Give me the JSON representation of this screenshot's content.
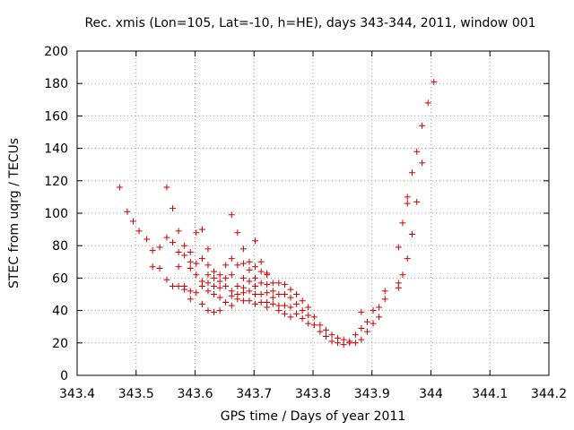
{
  "chart_data": {
    "type": "scatter",
    "title": "Rec. xmis (Lon=105, Lat=-10, h=HE), days 343-344, 2011, window 001",
    "xlabel": "GPS time / Days of year 2011",
    "ylabel": "STEC from uqrg / TECUs",
    "xlim": [
      343.4,
      344.2
    ],
    "ylim": [
      0,
      200
    ],
    "xticks": [
      343.4,
      343.5,
      343.6,
      343.7,
      343.8,
      343.9,
      344,
      344.1,
      344.2
    ],
    "xtick_labels": [
      "343.4",
      "343.5",
      "343.6",
      "343.7",
      "343.8",
      "343.9",
      "344",
      "344.1",
      "344.2"
    ],
    "yticks": [
      0,
      20,
      40,
      60,
      80,
      100,
      120,
      140,
      160,
      180,
      200
    ],
    "ytick_labels": [
      "0",
      "20",
      "40",
      "60",
      "80",
      "100",
      "120",
      "140",
      "160",
      "180",
      "200"
    ],
    "grid": true,
    "marker": "plus",
    "color": "#cc0000",
    "points": [
      [
        343.472,
        116
      ],
      [
        343.485,
        101
      ],
      [
        343.495,
        95
      ],
      [
        343.505,
        89
      ],
      [
        343.518,
        84
      ],
      [
        343.528,
        77
      ],
      [
        343.528,
        67
      ],
      [
        343.54,
        79
      ],
      [
        343.54,
        66
      ],
      [
        343.552,
        85
      ],
      [
        343.552,
        116
      ],
      [
        343.552,
        59
      ],
      [
        343.562,
        82
      ],
      [
        343.562,
        103
      ],
      [
        343.562,
        55
      ],
      [
        343.572,
        89
      ],
      [
        343.572,
        76
      ],
      [
        343.572,
        67
      ],
      [
        343.572,
        55
      ],
      [
        343.582,
        80
      ],
      [
        343.582,
        74
      ],
      [
        343.582,
        55
      ],
      [
        343.582,
        53
      ],
      [
        343.592,
        76
      ],
      [
        343.592,
        70
      ],
      [
        343.592,
        66
      ],
      [
        343.592,
        52
      ],
      [
        343.592,
        47
      ],
      [
        343.602,
        88
      ],
      [
        343.602,
        69
      ],
      [
        343.602,
        62
      ],
      [
        343.602,
        51
      ],
      [
        343.612,
        90
      ],
      [
        343.612,
        72
      ],
      [
        343.612,
        58
      ],
      [
        343.612,
        55
      ],
      [
        343.612,
        44
      ],
      [
        343.622,
        78
      ],
      [
        343.622,
        68
      ],
      [
        343.622,
        62
      ],
      [
        343.622,
        57
      ],
      [
        343.622,
        52
      ],
      [
        343.622,
        40
      ],
      [
        343.632,
        64
      ],
      [
        343.632,
        60
      ],
      [
        343.632,
        55
      ],
      [
        343.632,
        50
      ],
      [
        343.632,
        39
      ],
      [
        343.642,
        62
      ],
      [
        343.642,
        58
      ],
      [
        343.642,
        54
      ],
      [
        343.642,
        48
      ],
      [
        343.642,
        40
      ],
      [
        343.652,
        68
      ],
      [
        343.652,
        60
      ],
      [
        343.652,
        55
      ],
      [
        343.652,
        45
      ],
      [
        343.662,
        99
      ],
      [
        343.662,
        72
      ],
      [
        343.662,
        62
      ],
      [
        343.662,
        52
      ],
      [
        343.662,
        49
      ],
      [
        343.662,
        43
      ],
      [
        343.672,
        88
      ],
      [
        343.672,
        68
      ],
      [
        343.672,
        55
      ],
      [
        343.672,
        50
      ],
      [
        343.672,
        47
      ],
      [
        343.682,
        78
      ],
      [
        343.682,
        69
      ],
      [
        343.682,
        60
      ],
      [
        343.682,
        54
      ],
      [
        343.682,
        51
      ],
      [
        343.682,
        46
      ],
      [
        343.692,
        70
      ],
      [
        343.692,
        65
      ],
      [
        343.692,
        58
      ],
      [
        343.692,
        52
      ],
      [
        343.692,
        46
      ],
      [
        343.702,
        83
      ],
      [
        343.702,
        67
      ],
      [
        343.702,
        60
      ],
      [
        343.702,
        55
      ],
      [
        343.702,
        50
      ],
      [
        343.702,
        44
      ],
      [
        343.712,
        70
      ],
      [
        343.712,
        64
      ],
      [
        343.712,
        57
      ],
      [
        343.712,
        50
      ],
      [
        343.712,
        45
      ],
      [
        343.722,
        63
      ],
      [
        343.722,
        62
      ],
      [
        343.722,
        56
      ],
      [
        343.722,
        51
      ],
      [
        343.722,
        45
      ],
      [
        343.722,
        42
      ],
      [
        343.732,
        57
      ],
      [
        343.732,
        52
      ],
      [
        343.732,
        48
      ],
      [
        343.732,
        44
      ],
      [
        343.742,
        57
      ],
      [
        343.742,
        50
      ],
      [
        343.742,
        43
      ],
      [
        343.742,
        40
      ],
      [
        343.752,
        56
      ],
      [
        343.752,
        50
      ],
      [
        343.752,
        43
      ],
      [
        343.752,
        38
      ],
      [
        343.762,
        53
      ],
      [
        343.762,
        48
      ],
      [
        343.762,
        42
      ],
      [
        343.762,
        36
      ],
      [
        343.772,
        50
      ],
      [
        343.772,
        44
      ],
      [
        343.772,
        38
      ],
      [
        343.782,
        46
      ],
      [
        343.782,
        40
      ],
      [
        343.782,
        35
      ],
      [
        343.792,
        42
      ],
      [
        343.792,
        37
      ],
      [
        343.792,
        32
      ],
      [
        343.802,
        36
      ],
      [
        343.802,
        31
      ],
      [
        343.812,
        31
      ],
      [
        343.812,
        27
      ],
      [
        343.822,
        28
      ],
      [
        343.822,
        24
      ],
      [
        343.832,
        25
      ],
      [
        343.832,
        21
      ],
      [
        343.842,
        23
      ],
      [
        343.842,
        20
      ],
      [
        343.852,
        22
      ],
      [
        343.852,
        19
      ],
      [
        343.862,
        21
      ],
      [
        343.862,
        20
      ],
      [
        343.872,
        25
      ],
      [
        343.872,
        20
      ],
      [
        343.882,
        39
      ],
      [
        343.882,
        29
      ],
      [
        343.882,
        22
      ],
      [
        343.892,
        33
      ],
      [
        343.892,
        27
      ],
      [
        343.902,
        40
      ],
      [
        343.902,
        32
      ],
      [
        343.912,
        42
      ],
      [
        343.912,
        36
      ],
      [
        343.922,
        52
      ],
      [
        343.922,
        47
      ],
      [
        343.945,
        79
      ],
      [
        343.945,
        57
      ],
      [
        343.945,
        54
      ],
      [
        343.952,
        94
      ],
      [
        343.952,
        62
      ],
      [
        343.96,
        110
      ],
      [
        343.96,
        106
      ],
      [
        343.96,
        72
      ],
      [
        343.968,
        125
      ],
      [
        343.968,
        87
      ],
      [
        343.976,
        138
      ],
      [
        343.976,
        107
      ],
      [
        343.985,
        154
      ],
      [
        343.985,
        131
      ],
      [
        343.995,
        168
      ],
      [
        344.005,
        181
      ]
    ]
  }
}
